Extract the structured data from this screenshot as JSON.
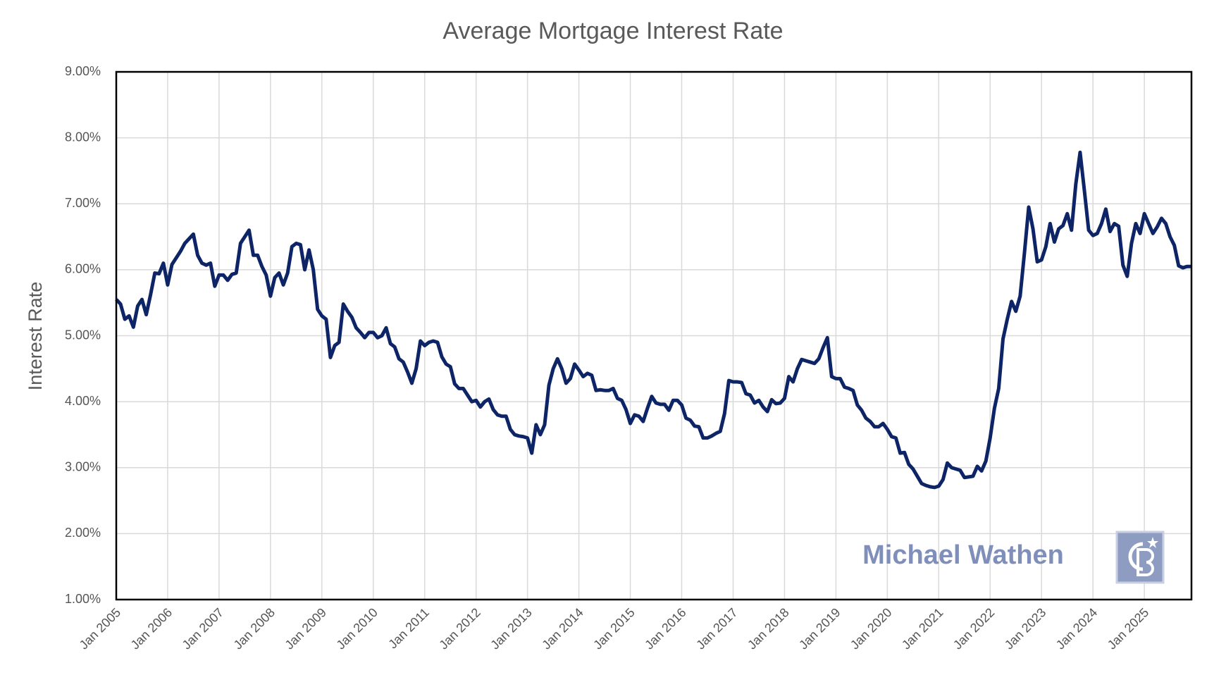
{
  "chart_data": {
    "type": "line",
    "title": "Average Mortgage Interest Rate",
    "y_label": "Interest Rate",
    "watermark": "Michael Wathen",
    "color": "#0d2466",
    "grid": true,
    "ylim": [
      1,
      9
    ],
    "yticks": [
      {
        "value": 1,
        "label": "1.00%"
      },
      {
        "value": 2,
        "label": "2.00%"
      },
      {
        "value": 3,
        "label": "3.00%"
      },
      {
        "value": 4,
        "label": "4.00%"
      },
      {
        "value": 5,
        "label": "5.00%"
      },
      {
        "value": 6,
        "label": "6.00%"
      },
      {
        "value": 7,
        "label": "7.00%"
      },
      {
        "value": 8,
        "label": "8.00%"
      },
      {
        "value": 9,
        "label": "9.00%"
      }
    ],
    "categories": [
      "Jan 2005",
      null,
      null,
      null,
      null,
      null,
      null,
      null,
      null,
      null,
      null,
      null,
      "Jan 2006",
      null,
      null,
      null,
      null,
      null,
      null,
      null,
      null,
      null,
      null,
      null,
      "Jan 2007",
      null,
      null,
      null,
      null,
      null,
      null,
      null,
      null,
      null,
      null,
      null,
      "Jan 2008",
      null,
      null,
      null,
      null,
      null,
      null,
      null,
      null,
      null,
      null,
      null,
      "Jan 2009",
      null,
      null,
      null,
      null,
      null,
      null,
      null,
      null,
      null,
      null,
      null,
      "Jan 2010",
      null,
      null,
      null,
      null,
      null,
      null,
      null,
      null,
      null,
      null,
      null,
      "Jan 2011",
      null,
      null,
      null,
      null,
      null,
      null,
      null,
      null,
      null,
      null,
      null,
      "Jan 2012",
      null,
      null,
      null,
      null,
      null,
      null,
      null,
      null,
      null,
      null,
      null,
      "Jan 2013",
      null,
      null,
      null,
      null,
      null,
      null,
      null,
      null,
      null,
      null,
      null,
      "Jan 2014",
      null,
      null,
      null,
      null,
      null,
      null,
      null,
      null,
      null,
      null,
      null,
      "Jan 2015",
      null,
      null,
      null,
      null,
      null,
      null,
      null,
      null,
      null,
      null,
      null,
      "Jan 2016",
      null,
      null,
      null,
      null,
      null,
      null,
      null,
      null,
      null,
      null,
      null,
      "Jan 2017",
      null,
      null,
      null,
      null,
      null,
      null,
      null,
      null,
      null,
      null,
      null,
      "Jan 2018",
      null,
      null,
      null,
      null,
      null,
      null,
      null,
      null,
      null,
      null,
      null,
      "Jan 2019",
      null,
      null,
      null,
      null,
      null,
      null,
      null,
      null,
      null,
      null,
      null,
      "Jan 2020",
      null,
      null,
      null,
      null,
      null,
      null,
      null,
      null,
      null,
      null,
      null,
      "Jan 2021",
      null,
      null,
      null,
      null,
      null,
      null,
      null,
      null,
      null,
      null,
      null,
      "Jan 2022",
      null,
      null,
      null,
      null,
      null,
      null,
      null,
      null,
      null,
      null,
      null,
      "Jan 2023",
      null,
      null,
      null,
      null,
      null,
      null,
      null,
      null,
      null,
      null,
      null,
      "Jan 2024",
      null,
      null,
      null,
      null,
      null,
      null,
      null,
      null,
      null,
      null,
      null,
      "Jan 2025",
      null,
      null,
      null,
      null,
      null,
      null,
      null,
      null,
      null,
      null,
      null
    ],
    "values": [
      5.55,
      5.48,
      5.25,
      5.3,
      5.13,
      5.45,
      5.55,
      5.32,
      5.62,
      5.95,
      5.94,
      6.1,
      5.77,
      6.08,
      6.18,
      6.28,
      6.4,
      6.47,
      6.54,
      6.22,
      6.1,
      6.07,
      6.1,
      5.75,
      5.92,
      5.92,
      5.84,
      5.93,
      5.95,
      6.4,
      6.5,
      6.6,
      6.22,
      6.22,
      6.05,
      5.92,
      5.6,
      5.88,
      5.95,
      5.77,
      5.95,
      6.35,
      6.4,
      6.38,
      6.0,
      6.3,
      6.0,
      5.4,
      5.3,
      5.25,
      4.67,
      4.85,
      4.9,
      5.48,
      5.37,
      5.28,
      5.12,
      5.05,
      4.97,
      5.05,
      5.05,
      4.97,
      5.0,
      5.12,
      4.88,
      4.83,
      4.65,
      4.6,
      4.45,
      4.28,
      4.5,
      4.92,
      4.85,
      4.9,
      4.92,
      4.9,
      4.68,
      4.57,
      4.53,
      4.27,
      4.2,
      4.2,
      4.1,
      4.0,
      4.02,
      3.92,
      4.0,
      4.04,
      3.88,
      3.8,
      3.78,
      3.78,
      3.58,
      3.5,
      3.48,
      3.47,
      3.45,
      3.22,
      3.65,
      3.5,
      3.65,
      4.25,
      4.5,
      4.65,
      4.5,
      4.28,
      4.35,
      4.57,
      4.48,
      4.38,
      4.43,
      4.4,
      4.17,
      4.18,
      4.17,
      4.17,
      4.2,
      4.05,
      4.02,
      3.88,
      3.67,
      3.8,
      3.78,
      3.7,
      3.9,
      4.08,
      3.98,
      3.96,
      3.96,
      3.87,
      4.02,
      4.02,
      3.95,
      3.75,
      3.72,
      3.63,
      3.62,
      3.45,
      3.45,
      3.48,
      3.52,
      3.55,
      3.82,
      4.32,
      4.3,
      4.3,
      4.29,
      4.12,
      4.1,
      3.98,
      4.02,
      3.92,
      3.85,
      4.03,
      3.97,
      3.98,
      4.05,
      4.38,
      4.3,
      4.5,
      4.64,
      4.62,
      4.6,
      4.58,
      4.65,
      4.82,
      4.97,
      4.38,
      4.35,
      4.35,
      4.22,
      4.2,
      4.17,
      3.95,
      3.87,
      3.75,
      3.7,
      3.62,
      3.62,
      3.67,
      3.58,
      3.47,
      3.45,
      3.22,
      3.23,
      3.05,
      2.98,
      2.87,
      2.76,
      2.73,
      2.71,
      2.7,
      2.72,
      2.82,
      3.07,
      3.0,
      2.98,
      2.96,
      2.85,
      2.86,
      2.87,
      3.02,
      2.95,
      3.1,
      3.45,
      3.9,
      4.2,
      4.95,
      5.25,
      5.52,
      5.37,
      5.6,
      6.25,
      6.95,
      6.62,
      6.12,
      6.15,
      6.35,
      6.7,
      6.42,
      6.62,
      6.67,
      6.85,
      6.6,
      7.3,
      7.78,
      7.2,
      6.6,
      6.52,
      6.55,
      6.7,
      6.92,
      6.58,
      6.7,
      6.66,
      6.07,
      5.9,
      6.4,
      6.7,
      6.55,
      6.85,
      6.7,
      6.55,
      6.65,
      6.78,
      6.7,
      6.5,
      6.37,
      6.06,
      6.03,
      6.05,
      6.05
    ]
  }
}
